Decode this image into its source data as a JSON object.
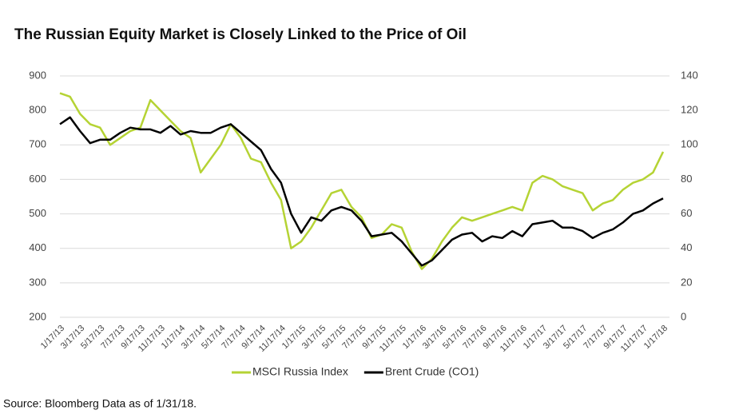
{
  "chart_data": {
    "type": "line",
    "title": "The Russian Equity Market is Closely Linked to the Price of Oil",
    "source": "Source:  Bloomberg Data as of 1/31/18.",
    "categories": [
      "1/17/13",
      null,
      "3/17/13",
      null,
      "5/17/13",
      null,
      "7/17/13",
      null,
      "9/17/13",
      null,
      "11/17/13",
      null,
      "1/17/14",
      null,
      "3/17/14",
      null,
      "5/17/14",
      null,
      "7/17/14",
      null,
      "9/17/14",
      null,
      "11/17/14",
      null,
      "1/17/15",
      null,
      "3/17/15",
      null,
      "5/17/15",
      null,
      "7/17/15",
      null,
      "9/17/15",
      null,
      "11/17/15",
      null,
      "1/17/16",
      null,
      "3/17/16",
      null,
      "5/17/16",
      null,
      "7/17/16",
      null,
      "9/17/16",
      null,
      "11/17/16",
      null,
      "1/17/17",
      null,
      "3/17/17",
      null,
      "5/17/17",
      null,
      "7/17/17",
      null,
      "9/17/17",
      null,
      "11/17/17",
      null,
      "1/17/18"
    ],
    "series": [
      {
        "name": "MSCI Russia Index",
        "color": "#b5d334",
        "axis": "y",
        "values": [
          850,
          840,
          790,
          760,
          750,
          700,
          720,
          740,
          750,
          830,
          800,
          770,
          740,
          720,
          620,
          660,
          700,
          760,
          720,
          660,
          650,
          590,
          540,
          400,
          420,
          460,
          510,
          560,
          570,
          520,
          490,
          430,
          440,
          470,
          460,
          390,
          340,
          370,
          420,
          460,
          490,
          480,
          490,
          500,
          510,
          520,
          510,
          590,
          610,
          600,
          580,
          570,
          560,
          510,
          530,
          540,
          570,
          590,
          600,
          620,
          680
        ]
      },
      {
        "name": "Brent Crude (CO1)",
        "color": "#000000",
        "axis": "y2",
        "values": [
          112,
          116,
          108,
          101,
          103,
          103,
          107,
          110,
          109,
          109,
          107,
          111,
          106,
          108,
          107,
          107,
          110,
          112,
          107,
          102,
          97,
          86,
          78,
          60,
          49,
          58,
          56,
          62,
          64,
          62,
          56,
          47,
          48,
          49,
          44,
          37,
          30,
          33,
          39,
          45,
          48,
          49,
          44,
          47,
          46,
          50,
          47,
          54,
          55,
          56,
          52,
          52,
          50,
          46,
          49,
          51,
          55,
          60,
          62,
          66,
          69
        ]
      }
    ],
    "ylim": [
      200,
      900
    ],
    "yticks": [
      200,
      300,
      400,
      500,
      600,
      700,
      800,
      900
    ],
    "y2lim": [
      0,
      140
    ],
    "y2ticks": [
      0,
      20,
      40,
      60,
      80,
      100,
      120,
      140
    ],
    "grid": true,
    "legend": "bottom"
  }
}
